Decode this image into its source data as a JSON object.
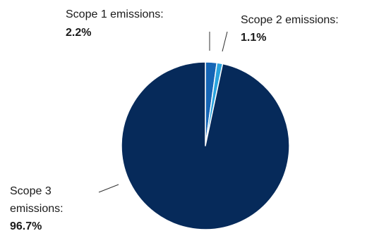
{
  "chart_data": {
    "type": "pie",
    "title": "",
    "slices": [
      {
        "label": "Scope 1 emissions:",
        "value": 2.2,
        "display": "2.2%",
        "color": "#1565b5"
      },
      {
        "label": "Scope 2 emissions:",
        "value": 1.1,
        "display": "1.1%",
        "color": "#29a3de"
      },
      {
        "label_lines": [
          "Scope 3",
          "emissions:"
        ],
        "value": 96.7,
        "display": "96.7%",
        "color": "#062a5a"
      }
    ],
    "start": "12 o'clock",
    "direction": "clockwise",
    "slice_border_color": "#ffffff",
    "legend": "none"
  }
}
